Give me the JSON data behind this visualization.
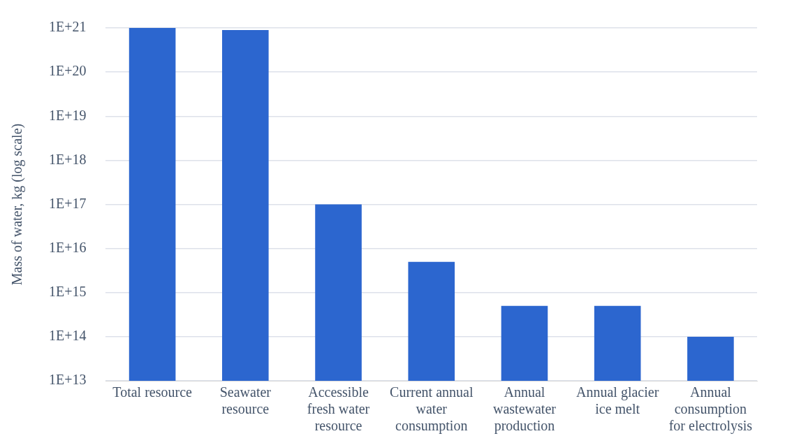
{
  "chart_data": {
    "type": "bar",
    "ylabel": "Mass of water, kg (log scale)",
    "categories": [
      "Total resource",
      "Seawater resource",
      "Accessible fresh water resource",
      "Current annual water consumption",
      "Annual wastewater production",
      "Annual glacier ice melt",
      "Annual consumption for electrolysis"
    ],
    "values": [
      1e+21,
      9e+20,
      1e+17,
      5000000000000000.0,
      500000000000000.0,
      500000000000000.0,
      100000000000000.0
    ],
    "color": "#2c66cf",
    "log": "y",
    "ylim": [
      10000000000000.0,
      1e+21
    ],
    "yticks": [
      {
        "value": 10000000000000.0,
        "label": "1E+13"
      },
      {
        "value": 100000000000000.0,
        "label": "1E+14"
      },
      {
        "value": 1000000000000000.0,
        "label": "1E+15"
      },
      {
        "value": 1e+16,
        "label": "1E+16"
      },
      {
        "value": 1e+17,
        "label": "1E+17"
      },
      {
        "value": 1e+18,
        "label": "1E+18"
      },
      {
        "value": 1e+19,
        "label": "1E+19"
      },
      {
        "value": 1e+20,
        "label": "1E+20"
      },
      {
        "value": 1e+21,
        "label": "1E+21"
      }
    ],
    "grid": "y"
  }
}
